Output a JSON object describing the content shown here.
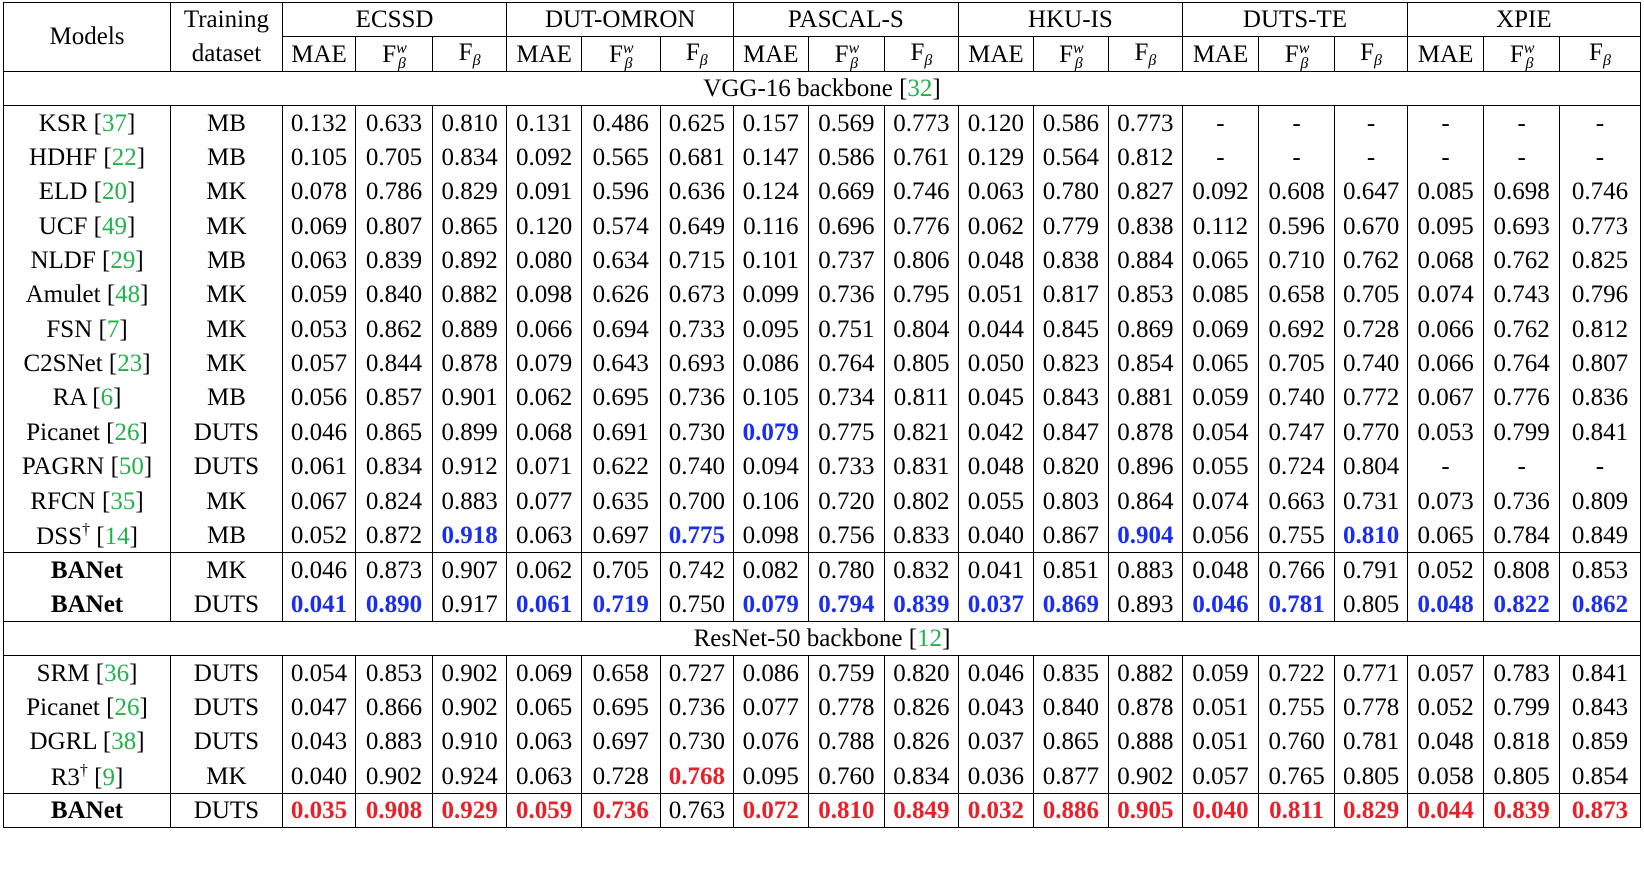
{
  "header": {
    "models_label": "Models",
    "training_label_1": "Training",
    "training_label_2": "dataset",
    "datasets": [
      "ECSSD",
      "DUT-OMRON",
      "PASCAL-S",
      "HKU-IS",
      "DUTS-TE",
      "XPIE"
    ],
    "metric_mae": "MAE",
    "metric_f": "F",
    "metric_fw_sup": "w",
    "metric_f_sub": "β"
  },
  "sections": [
    {
      "title": "VGG-16 backbone ",
      "ref": "32",
      "rows": [
        {
          "model": "KSR ",
          "ref": "37",
          "train": "MB",
          "values": [
            "0.132",
            "0.633",
            "0.810",
            "0.131",
            "0.486",
            "0.625",
            "0.157",
            "0.569",
            "0.773",
            "0.120",
            "0.586",
            "0.773",
            "-",
            "-",
            "-",
            "-",
            "-",
            "-"
          ]
        },
        {
          "model": "HDHF ",
          "ref": "22",
          "train": "MB",
          "values": [
            "0.105",
            "0.705",
            "0.834",
            "0.092",
            "0.565",
            "0.681",
            "0.147",
            "0.586",
            "0.761",
            "0.129",
            "0.564",
            "0.812",
            "-",
            "-",
            "-",
            "-",
            "-",
            "-"
          ]
        },
        {
          "model": "ELD ",
          "ref": "20",
          "train": "MK",
          "values": [
            "0.078",
            "0.786",
            "0.829",
            "0.091",
            "0.596",
            "0.636",
            "0.124",
            "0.669",
            "0.746",
            "0.063",
            "0.780",
            "0.827",
            "0.092",
            "0.608",
            "0.647",
            "0.085",
            "0.698",
            "0.746"
          ]
        },
        {
          "model": "UCF ",
          "ref": "49",
          "train": "MK",
          "values": [
            "0.069",
            "0.807",
            "0.865",
            "0.120",
            "0.574",
            "0.649",
            "0.116",
            "0.696",
            "0.776",
            "0.062",
            "0.779",
            "0.838",
            "0.112",
            "0.596",
            "0.670",
            "0.095",
            "0.693",
            "0.773"
          ]
        },
        {
          "model": "NLDF ",
          "ref": "29",
          "train": "MB",
          "values": [
            "0.063",
            "0.839",
            "0.892",
            "0.080",
            "0.634",
            "0.715",
            "0.101",
            "0.737",
            "0.806",
            "0.048",
            "0.838",
            "0.884",
            "0.065",
            "0.710",
            "0.762",
            "0.068",
            "0.762",
            "0.825"
          ]
        },
        {
          "model": "Amulet ",
          "ref": "48",
          "train": "MK",
          "values": [
            "0.059",
            "0.840",
            "0.882",
            "0.098",
            "0.626",
            "0.673",
            "0.099",
            "0.736",
            "0.795",
            "0.051",
            "0.817",
            "0.853",
            "0.085",
            "0.658",
            "0.705",
            "0.074",
            "0.743",
            "0.796"
          ]
        },
        {
          "model": "FSN ",
          "ref": "7",
          "train": "MK",
          "values": [
            "0.053",
            "0.862",
            "0.889",
            "0.066",
            "0.694",
            "0.733",
            "0.095",
            "0.751",
            "0.804",
            "0.044",
            "0.845",
            "0.869",
            "0.069",
            "0.692",
            "0.728",
            "0.066",
            "0.762",
            "0.812"
          ]
        },
        {
          "model": "C2SNet ",
          "ref": "23",
          "train": "MK",
          "values": [
            "0.057",
            "0.844",
            "0.878",
            "0.079",
            "0.643",
            "0.693",
            "0.086",
            "0.764",
            "0.805",
            "0.050",
            "0.823",
            "0.854",
            "0.065",
            "0.705",
            "0.740",
            "0.066",
            "0.764",
            "0.807"
          ]
        },
        {
          "model": "RA ",
          "ref": "6",
          "train": "MB",
          "values": [
            "0.056",
            "0.857",
            "0.901",
            "0.062",
            "0.695",
            "0.736",
            "0.105",
            "0.734",
            "0.811",
            "0.045",
            "0.843",
            "0.881",
            "0.059",
            "0.740",
            "0.772",
            "0.067",
            "0.776",
            "0.836"
          ]
        },
        {
          "model": "Picanet ",
          "ref": "26",
          "train": "DUTS",
          "values": [
            "0.046",
            "0.865",
            "0.899",
            "0.068",
            "0.691",
            "0.730",
            "0.079",
            "0.775",
            "0.821",
            "0.042",
            "0.847",
            "0.878",
            "0.054",
            "0.747",
            "0.770",
            "0.053",
            "0.799",
            "0.841"
          ],
          "highlight": {
            "6": "blue"
          }
        },
        {
          "model": "PAGRN ",
          "ref": "50",
          "train": "DUTS",
          "values": [
            "0.061",
            "0.834",
            "0.912",
            "0.071",
            "0.622",
            "0.740",
            "0.094",
            "0.733",
            "0.831",
            "0.048",
            "0.820",
            "0.896",
            "0.055",
            "0.724",
            "0.804",
            "-",
            "-",
            "-"
          ]
        },
        {
          "model": "RFCN ",
          "ref": "35",
          "train": "MK",
          "values": [
            "0.067",
            "0.824",
            "0.883",
            "0.077",
            "0.635",
            "0.700",
            "0.106",
            "0.720",
            "0.802",
            "0.055",
            "0.803",
            "0.864",
            "0.074",
            "0.663",
            "0.731",
            "0.073",
            "0.736",
            "0.809"
          ]
        },
        {
          "model": "DSS",
          "sup": "†",
          "ref": "14",
          "train": "MB",
          "values": [
            "0.052",
            "0.872",
            "0.918",
            "0.063",
            "0.697",
            "0.775",
            "0.098",
            "0.756",
            "0.833",
            "0.040",
            "0.867",
            "0.904",
            "0.056",
            "0.755",
            "0.810",
            "0.065",
            "0.784",
            "0.849"
          ],
          "highlight": {
            "2": "blue",
            "5": "blue",
            "11": "blue",
            "14": "blue"
          }
        },
        {
          "model": "BANet",
          "bold": true,
          "train": "MK",
          "values": [
            "0.046",
            "0.873",
            "0.907",
            "0.062",
            "0.705",
            "0.742",
            "0.082",
            "0.780",
            "0.832",
            "0.041",
            "0.851",
            "0.883",
            "0.048",
            "0.766",
            "0.791",
            "0.052",
            "0.808",
            "0.853"
          ]
        },
        {
          "model": "BANet",
          "bold": true,
          "train": "DUTS",
          "values": [
            "0.041",
            "0.890",
            "0.917",
            "0.061",
            "0.719",
            "0.750",
            "0.079",
            "0.794",
            "0.839",
            "0.037",
            "0.869",
            "0.893",
            "0.046",
            "0.781",
            "0.805",
            "0.048",
            "0.822",
            "0.862"
          ],
          "highlight": {
            "0": "blue",
            "1": "blue",
            "3": "blue",
            "4": "blue",
            "6": "blue",
            "7": "blue",
            "8": "blue",
            "9": "blue",
            "10": "blue",
            "12": "blue",
            "13": "blue",
            "15": "blue",
            "16": "blue",
            "17": "blue"
          }
        }
      ]
    },
    {
      "title": "ResNet-50 backbone ",
      "ref": "12",
      "rows": [
        {
          "model": "SRM ",
          "ref": "36",
          "train": "DUTS",
          "values": [
            "0.054",
            "0.853",
            "0.902",
            "0.069",
            "0.658",
            "0.727",
            "0.086",
            "0.759",
            "0.820",
            "0.046",
            "0.835",
            "0.882",
            "0.059",
            "0.722",
            "0.771",
            "0.057",
            "0.783",
            "0.841"
          ]
        },
        {
          "model": "Picanet ",
          "ref": "26",
          "train": "DUTS",
          "values": [
            "0.047",
            "0.866",
            "0.902",
            "0.065",
            "0.695",
            "0.736",
            "0.077",
            "0.778",
            "0.826",
            "0.043",
            "0.840",
            "0.878",
            "0.051",
            "0.755",
            "0.778",
            "0.052",
            "0.799",
            "0.843"
          ]
        },
        {
          "model": "DGRL ",
          "ref": "38",
          "train": "DUTS",
          "values": [
            "0.043",
            "0.883",
            "0.910",
            "0.063",
            "0.697",
            "0.730",
            "0.076",
            "0.788",
            "0.826",
            "0.037",
            "0.865",
            "0.888",
            "0.051",
            "0.760",
            "0.781",
            "0.048",
            "0.818",
            "0.859"
          ]
        },
        {
          "model": "R3",
          "sup": "†",
          "ref": "9",
          "train": "MK",
          "values": [
            "0.040",
            "0.902",
            "0.924",
            "0.063",
            "0.728",
            "0.768",
            "0.095",
            "0.760",
            "0.834",
            "0.036",
            "0.877",
            "0.902",
            "0.057",
            "0.765",
            "0.805",
            "0.058",
            "0.805",
            "0.854"
          ],
          "highlight": {
            "5": "red"
          }
        },
        {
          "model": "BANet",
          "bold": true,
          "train": "DUTS",
          "values": [
            "0.035",
            "0.908",
            "0.929",
            "0.059",
            "0.736",
            "0.763",
            "0.072",
            "0.810",
            "0.849",
            "0.032",
            "0.886",
            "0.905",
            "0.040",
            "0.811",
            "0.829",
            "0.044",
            "0.839",
            "0.873"
          ],
          "highlight": {
            "0": "red",
            "1": "red",
            "2": "red",
            "3": "red",
            "4": "red",
            "6": "red",
            "7": "red",
            "8": "red",
            "9": "red",
            "10": "red",
            "11": "red",
            "12": "red",
            "13": "red",
            "14": "red",
            "15": "red",
            "16": "red",
            "17": "red"
          }
        }
      ]
    }
  ],
  "colors": {
    "ref": "#22b14c",
    "best_vgg": "#1a2ef0",
    "best_resnet": "#e8202a"
  }
}
